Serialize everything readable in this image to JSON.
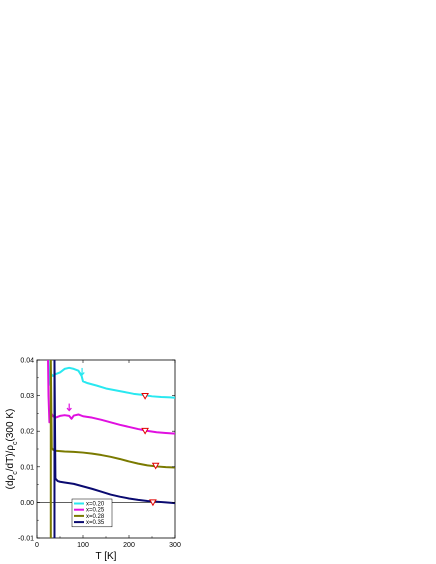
{
  "chart_data": {
    "type": "line",
    "xlabel": "T [K]",
    "ylabel": "(dρc/dT)/ρc(300 K)",
    "ylabel_parts": {
      "pre": "(d",
      "rho": "ρ",
      "sub": "c",
      "mid": "/dT)/",
      "rho2": "ρ",
      "sub2": "c",
      "post": "(300 K)"
    },
    "xlim": [
      0,
      300
    ],
    "ylim": [
      -0.01,
      0.04
    ],
    "x_ticks": [
      0,
      100,
      200,
      300
    ],
    "x_tick_labels": [
      "0",
      "100",
      "200",
      "300"
    ],
    "y_ticks": [
      -0.01,
      0.0,
      0.01,
      0.02,
      0.03,
      0.04
    ],
    "y_tick_labels": [
      "-0.01",
      "0.00",
      "0.01",
      "0.02",
      "0.03",
      "0.04"
    ],
    "zero_line": true,
    "grid": false,
    "legend_position": "bottom-center",
    "series": [
      {
        "name": "x=0.20",
        "color": "#29e8f0",
        "points": [
          [
            25,
            0.04
          ],
          [
            27,
            0.0345
          ],
          [
            29,
            0.033
          ],
          [
            31,
            0.036
          ],
          [
            35,
            0.0355
          ],
          [
            40,
            0.036
          ],
          [
            50,
            0.0365
          ],
          [
            60,
            0.0375
          ],
          [
            70,
            0.0378
          ],
          [
            80,
            0.0375
          ],
          [
            90,
            0.037
          ],
          [
            97,
            0.0355
          ],
          [
            100,
            0.034
          ],
          [
            110,
            0.0335
          ],
          [
            130,
            0.0328
          ],
          [
            150,
            0.032
          ],
          [
            170,
            0.0315
          ],
          [
            190,
            0.031
          ],
          [
            210,
            0.0305
          ],
          [
            230,
            0.0302
          ],
          [
            250,
            0.0298
          ],
          [
            270,
            0.0296
          ],
          [
            290,
            0.0295
          ],
          [
            300,
            0.0294
          ]
        ],
        "marker": {
          "x": 235,
          "y": 0.0299
        },
        "arrow": {
          "x": 98,
          "y": 0.0358
        }
      },
      {
        "name": "x=0.25",
        "color": "#e010e0",
        "points": [
          [
            24,
            0.04
          ],
          [
            25,
            0.03
          ],
          [
            27,
            0.0225
          ],
          [
            29,
            0.023
          ],
          [
            31,
            0.025
          ],
          [
            35,
            0.0242
          ],
          [
            40,
            0.0238
          ],
          [
            50,
            0.0243
          ],
          [
            60,
            0.0245
          ],
          [
            70,
            0.0243
          ],
          [
            75,
            0.0235
          ],
          [
            80,
            0.0244
          ],
          [
            90,
            0.0247
          ],
          [
            100,
            0.0242
          ],
          [
            120,
            0.0238
          ],
          [
            140,
            0.0232
          ],
          [
            160,
            0.0225
          ],
          [
            180,
            0.0218
          ],
          [
            200,
            0.0212
          ],
          [
            220,
            0.0206
          ],
          [
            240,
            0.0201
          ],
          [
            260,
            0.0197
          ],
          [
            280,
            0.0195
          ],
          [
            300,
            0.0193
          ]
        ],
        "marker": {
          "x": 235,
          "y": 0.0201
        },
        "arrow": {
          "x": 70,
          "y": 0.0258
        }
      },
      {
        "name": "x=0.28",
        "color": "#7a7a00",
        "points": [
          [
            30,
            -0.01
          ],
          [
            30,
            0.04
          ],
          [
            32,
            0.0153
          ],
          [
            35,
            0.0148
          ],
          [
            40,
            0.0145
          ],
          [
            60,
            0.0143
          ],
          [
            80,
            0.0142
          ],
          [
            100,
            0.014
          ],
          [
            120,
            0.0137
          ],
          [
            140,
            0.0133
          ],
          [
            160,
            0.0128
          ],
          [
            180,
            0.0122
          ],
          [
            200,
            0.0115
          ],
          [
            220,
            0.0109
          ],
          [
            240,
            0.0104
          ],
          [
            260,
            0.0101
          ],
          [
            280,
            0.0099
          ],
          [
            300,
            0.0098
          ]
        ],
        "marker": {
          "x": 258,
          "y": 0.0103
        },
        "arrow": null
      },
      {
        "name": "x=0.35",
        "color": "#0a0a70",
        "points": [
          [
            38,
            -0.01
          ],
          [
            38,
            0.04
          ],
          [
            40,
            0.0067
          ],
          [
            45,
            0.006
          ],
          [
            50,
            0.0058
          ],
          [
            60,
            0.0056
          ],
          [
            80,
            0.0052
          ],
          [
            100,
            0.0045
          ],
          [
            120,
            0.0038
          ],
          [
            140,
            0.003
          ],
          [
            160,
            0.0022
          ],
          [
            180,
            0.0016
          ],
          [
            200,
            0.0011
          ],
          [
            220,
            0.0007
          ],
          [
            240,
            0.0004
          ],
          [
            260,
            0.0002
          ],
          [
            280,
            0.0
          ],
          [
            300,
            -0.0002
          ]
        ],
        "marker": {
          "x": 252,
          "y": 0.0
        },
        "arrow": null
      }
    ]
  }
}
